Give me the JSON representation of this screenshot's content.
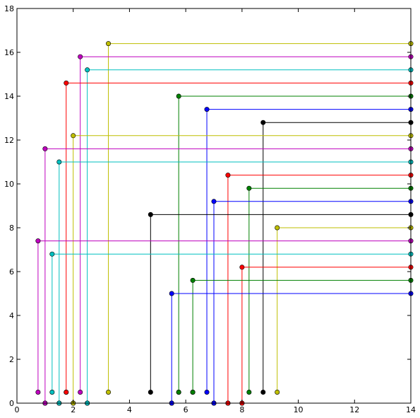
{
  "chart_data": {
    "type": "line",
    "title": "",
    "xlabel": "",
    "ylabel": "",
    "xlim": [
      0,
      14
    ],
    "ylim": [
      0,
      18
    ],
    "xticks": [
      "0",
      "2",
      "4",
      "6",
      "8",
      "10",
      "12",
      "14"
    ],
    "yticks": [
      "0",
      "2",
      "4",
      "6",
      "8",
      "10",
      "12",
      "14",
      "16",
      "18"
    ],
    "grid": false,
    "legend": "none",
    "series": [
      {
        "color": "#bfbf00",
        "points": [
          [
            3.25,
            0.5
          ],
          [
            3.25,
            16.4
          ],
          [
            14,
            16.4
          ]
        ]
      },
      {
        "color": "#bf00bf",
        "points": [
          [
            2.25,
            0.5
          ],
          [
            2.25,
            15.8
          ],
          [
            14,
            15.8
          ]
        ]
      },
      {
        "color": "#00bfbf",
        "points": [
          [
            2.5,
            0
          ],
          [
            2.5,
            15.2
          ],
          [
            14,
            15.2
          ]
        ]
      },
      {
        "color": "#ff0000",
        "points": [
          [
            1.75,
            0.5
          ],
          [
            1.75,
            14.6
          ],
          [
            14,
            14.6
          ]
        ]
      },
      {
        "color": "#008000",
        "points": [
          [
            5.75,
            0.5
          ],
          [
            5.75,
            14.0
          ],
          [
            14,
            14.0
          ]
        ]
      },
      {
        "color": "#0000ff",
        "points": [
          [
            6.75,
            0.5
          ],
          [
            6.75,
            13.4
          ],
          [
            14,
            13.4
          ]
        ]
      },
      {
        "color": "#000000",
        "points": [
          [
            8.75,
            0.5
          ],
          [
            8.75,
            12.8
          ],
          [
            14,
            12.8
          ]
        ]
      },
      {
        "color": "#bfbf00",
        "points": [
          [
            2.0,
            0
          ],
          [
            2.0,
            12.2
          ],
          [
            14,
            12.2
          ]
        ]
      },
      {
        "color": "#bf00bf",
        "points": [
          [
            1.0,
            0
          ],
          [
            1.0,
            11.6
          ],
          [
            14,
            11.6
          ]
        ]
      },
      {
        "color": "#00bfbf",
        "points": [
          [
            1.5,
            0
          ],
          [
            1.5,
            11.0
          ],
          [
            14,
            11.0
          ]
        ]
      },
      {
        "color": "#ff0000",
        "points": [
          [
            7.5,
            0
          ],
          [
            7.5,
            10.4
          ],
          [
            14,
            10.4
          ]
        ]
      },
      {
        "color": "#008000",
        "points": [
          [
            8.25,
            0.5
          ],
          [
            8.25,
            9.8
          ],
          [
            14,
            9.8
          ]
        ]
      },
      {
        "color": "#0000ff",
        "points": [
          [
            7.0,
            0
          ],
          [
            7.0,
            9.2
          ],
          [
            14,
            9.2
          ]
        ]
      },
      {
        "color": "#000000",
        "points": [
          [
            4.75,
            0.5
          ],
          [
            4.75,
            8.6
          ],
          [
            14,
            8.6
          ]
        ]
      },
      {
        "color": "#bfbf00",
        "points": [
          [
            9.25,
            0.5
          ],
          [
            9.25,
            8.0
          ],
          [
            14,
            8.0
          ]
        ]
      },
      {
        "color": "#bf00bf",
        "points": [
          [
            0.75,
            0.5
          ],
          [
            0.75,
            7.4
          ],
          [
            14,
            7.4
          ]
        ]
      },
      {
        "color": "#00bfbf",
        "points": [
          [
            1.25,
            0.5
          ],
          [
            1.25,
            6.8
          ],
          [
            14,
            6.8
          ]
        ]
      },
      {
        "color": "#ff0000",
        "points": [
          [
            8.0,
            0
          ],
          [
            8.0,
            6.2
          ],
          [
            14,
            6.2
          ]
        ]
      },
      {
        "color": "#008000",
        "points": [
          [
            6.25,
            0.5
          ],
          [
            6.25,
            5.6
          ],
          [
            14,
            5.6
          ]
        ]
      },
      {
        "color": "#0000ff",
        "points": [
          [
            5.5,
            0
          ],
          [
            5.5,
            5.0
          ],
          [
            14,
            5.0
          ]
        ]
      }
    ],
    "markers": [
      {
        "color": "#0000ff",
        "points": [
          [
            5.5,
            0
          ],
          [
            7.0,
            0
          ]
        ]
      },
      {
        "color": "#ff0000",
        "points": [
          [
            7.5,
            0
          ],
          [
            8.0,
            0
          ]
        ]
      },
      {
        "color": "#bf00bf",
        "points": [
          [
            1.0,
            0
          ]
        ]
      },
      {
        "color": "#00bfbf",
        "points": [
          [
            1.5,
            0
          ],
          [
            2.5,
            0
          ]
        ]
      },
      {
        "color": "#bfbf00",
        "points": [
          [
            2.0,
            0
          ]
        ]
      },
      {
        "color": "#008000",
        "points": [
          [
            5.75,
            0.5
          ],
          [
            6.25,
            0.5
          ]
        ]
      },
      {
        "color": "#ff0000",
        "points": [
          [
            1.75,
            0.5
          ]
        ]
      }
    ]
  }
}
